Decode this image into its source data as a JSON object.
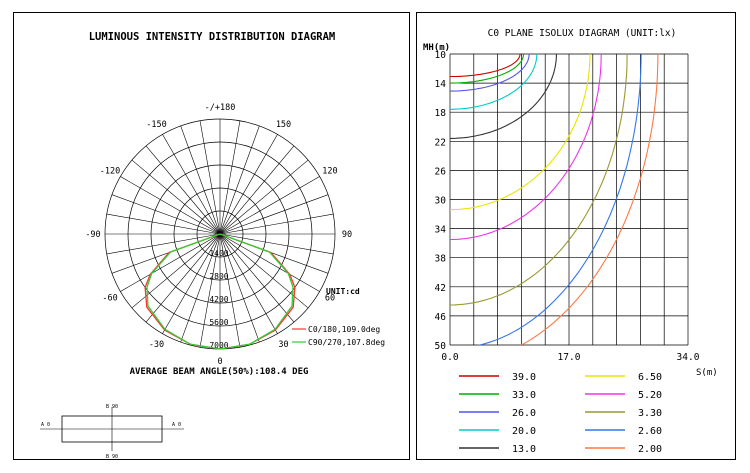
{
  "polar": {
    "title": "LUMINOUS INTENSITY DISTRIBUTION DIAGRAM",
    "angle_labels": [
      "-/+180",
      "150",
      "120",
      "90",
      "60",
      "30",
      "0",
      "-30",
      "-60",
      "-90",
      "-120",
      "-150"
    ],
    "radial_labels": [
      "0",
      "1400",
      "2800",
      "4200",
      "5600",
      "7000"
    ],
    "unit": "UNIT:cd",
    "beam_angle": "AVERAGE BEAM ANGLE(50%):108.4 DEG",
    "small_labels": [
      "B 90",
      "B 90",
      "A 0",
      "A 0"
    ]
  },
  "isolux": {
    "title": "C0 PLANE ISOLUX DIAGRAM (UNIT:lx)",
    "y_axis_label": "MH(m)",
    "x_axis_label": "S(m)",
    "y_ticks": [
      "10",
      "14",
      "18",
      "22",
      "26",
      "30",
      "34",
      "38",
      "42",
      "46",
      "50"
    ],
    "x_ticks": [
      "0.0",
      "17.0",
      "34.0"
    ]
  },
  "colors": {
    "c0": "#ff3333",
    "c90": "#33cc33",
    "grid": "#000000"
  },
  "chart_data": [
    {
      "type": "polar",
      "title": "LUMINOUS INTENSITY DISTRIBUTION DIAGRAM",
      "r_max": 7000,
      "radial_ticks": [
        0,
        1400,
        2800,
        4200,
        5600,
        7000
      ],
      "angle_ticks": [
        -150,
        -120,
        -90,
        -60,
        -30,
        0,
        30,
        60,
        90,
        120,
        150,
        180
      ],
      "unit": "cd",
      "series": [
        {
          "name": "C0/180,109.0deg",
          "color": "#ff3333",
          "angles": [
            -90,
            -70,
            -60,
            -54.5,
            -45,
            -30,
            -15,
            0,
            15,
            30,
            45,
            54.5,
            60,
            70,
            90
          ],
          "values": [
            0,
            3300,
            4900,
            5600,
            6300,
            6750,
            6950,
            7000,
            6950,
            6750,
            6300,
            5600,
            4900,
            3300,
            0
          ]
        },
        {
          "name": "C90/270,107.8deg",
          "color": "#33cc33",
          "angles": [
            -90,
            -70,
            -60,
            -53.9,
            -45,
            -30,
            -15,
            0,
            15,
            30,
            45,
            53.9,
            60,
            70,
            90
          ],
          "values": [
            0,
            3200,
            4800,
            5500,
            6200,
            6700,
            6950,
            7000,
            6950,
            6700,
            6200,
            5500,
            4800,
            3200,
            0
          ]
        }
      ],
      "annotation": "AVERAGE BEAM ANGLE(50%):108.4 DEG"
    },
    {
      "type": "line",
      "title": "C0 PLANE ISOLUX DIAGRAM (UNIT:lx)",
      "xlabel": "S(m)",
      "ylabel": "MH(m)",
      "xlim": [
        0,
        34
      ],
      "ylim": [
        10,
        50
      ],
      "y_inverted": true,
      "series": [
        {
          "name": "39.0",
          "color": "#cc0000",
          "half_width": 10.0,
          "depth": 13.1
        },
        {
          "name": "33.0",
          "color": "#00b000",
          "half_width": 10.5,
          "depth": 14.0
        },
        {
          "name": "26.0",
          "color": "#5555ee",
          "half_width": 11.3,
          "depth": 15.1
        },
        {
          "name": "20.0",
          "color": "#00cccc",
          "half_width": 12.4,
          "depth": 17.6
        },
        {
          "name": "13.0",
          "color": "#333333",
          "half_width": 15.2,
          "depth": 21.6
        },
        {
          "name": "6.50",
          "color": "#e6e600",
          "half_width": 20.0,
          "depth": 31.4
        },
        {
          "name": "5.20",
          "color": "#ee33ee",
          "half_width": 21.6,
          "depth": 35.5
        },
        {
          "name": "3.30",
          "color": "#999933",
          "half_width": 25.3,
          "depth": 44.5
        },
        {
          "name": "2.60",
          "color": "#3377ee",
          "half_width": 27.3,
          "depth": 50.5
        },
        {
          "name": "2.00",
          "color": "#ff7744",
          "half_width": 29.7,
          "depth": 52.6
        }
      ]
    }
  ]
}
